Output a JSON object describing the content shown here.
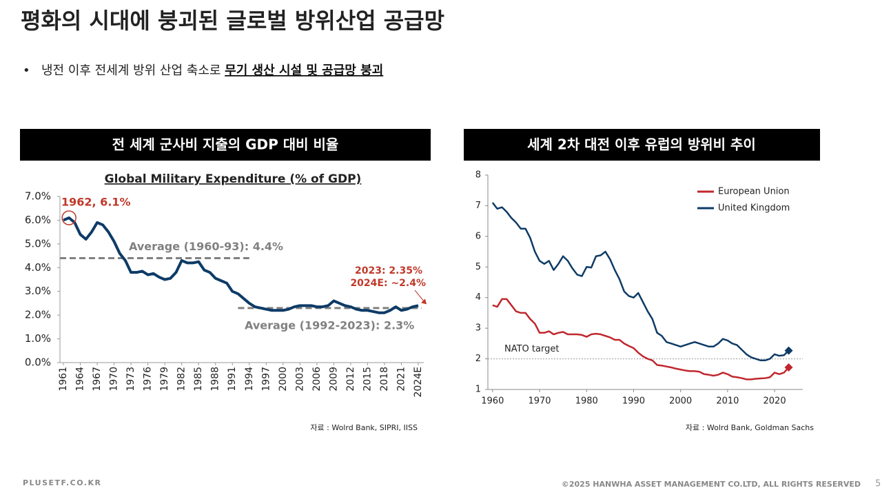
{
  "header": {
    "title": "평화의 시대에 붕괴된 글로벌 방위산업 공급망"
  },
  "bullet": {
    "text": "냉전 이후 전세계 방위 산업 축소로 ",
    "emphasis": "무기 생산 시설 및 공급망 붕괴"
  },
  "panels": [
    {
      "heading": "전 세계 군사비 지출의 GDP 대비 비율"
    },
    {
      "heading": "세계 2차 대전 이후 유럽의 방위비 추이"
    }
  ],
  "footer": {
    "site": "PLUSETF.CO.KR",
    "copyright": "©2025 HANWHA ASSET MANAGEMENT CO.LTD, ALL RIGHTS RESERVED",
    "page": "5"
  },
  "chart_data": [
    {
      "type": "line",
      "title": "Global Military Expenditure (% of GDP)",
      "color": "#0d3b66",
      "categories": [
        "1961",
        null,
        null,
        "1964",
        null,
        null,
        "1967",
        null,
        null,
        "1970",
        null,
        null,
        "1973",
        null,
        null,
        "1976",
        null,
        null,
        "1979",
        null,
        null,
        "1982",
        null,
        null,
        "1985",
        null,
        null,
        "1988",
        null,
        null,
        "1991",
        null,
        null,
        "1994",
        null,
        null,
        "1997",
        null,
        null,
        "2000",
        null,
        null,
        "2003",
        null,
        null,
        "2006",
        null,
        null,
        "2009",
        null,
        null,
        "2012",
        null,
        null,
        "2015",
        null,
        null,
        "2018",
        null,
        null,
        "2021",
        null,
        null,
        "2024E"
      ],
      "values": [
        6.0,
        6.1,
        5.9,
        5.4,
        5.2,
        5.5,
        5.9,
        5.8,
        5.5,
        5.1,
        4.6,
        4.3,
        3.8,
        3.8,
        3.85,
        3.7,
        3.75,
        3.6,
        3.5,
        3.55,
        3.8,
        4.3,
        4.2,
        4.2,
        4.25,
        3.9,
        3.8,
        3.55,
        3.45,
        3.35,
        3.0,
        2.9,
        2.7,
        2.5,
        2.35,
        2.3,
        2.25,
        2.2,
        2.2,
        2.2,
        2.25,
        2.35,
        2.4,
        2.4,
        2.4,
        2.35,
        2.35,
        2.4,
        2.6,
        2.5,
        2.4,
        2.35,
        2.25,
        2.2,
        2.2,
        2.15,
        2.1,
        2.1,
        2.2,
        2.35,
        2.2,
        2.25,
        2.35,
        2.4
      ],
      "ylim": [
        0,
        7
      ],
      "yticks": [
        {
          "value": 0,
          "label": "0.0%"
        },
        {
          "value": 1,
          "label": "1.0%"
        },
        {
          "value": 2,
          "label": "2.0%"
        },
        {
          "value": 3,
          "label": "3.0%"
        },
        {
          "value": 4,
          "label": "4.0%"
        },
        {
          "value": 5,
          "label": "5.0%"
        },
        {
          "value": 6,
          "label": "6.0%"
        },
        {
          "value": 7,
          "label": "7.0%"
        }
      ],
      "grid": false,
      "annotations": [
        {
          "text": "1962, 6.1%",
          "value": 6.1
        },
        {
          "text": "Average (1960-93): 4.4%",
          "value": 4.4
        },
        {
          "text": "Average (1992-2023): 2.3%",
          "value": 2.3
        },
        {
          "text": "2023: 2.35%"
        },
        {
          "text": "2024E: ~2.4%",
          "value": 2.4
        }
      ],
      "source": "자료 : Wolrd Bank, SIPRI, IISS"
    },
    {
      "type": "line",
      "legend": "top-right",
      "grid": false,
      "x": [
        1960,
        1961,
        1962,
        1963,
        1964,
        1965,
        1966,
        1967,
        1968,
        1969,
        1970,
        1971,
        1972,
        1973,
        1974,
        1975,
        1976,
        1977,
        1978,
        1979,
        1980,
        1981,
        1982,
        1983,
        1984,
        1985,
        1986,
        1987,
        1988,
        1989,
        1990,
        1991,
        1992,
        1993,
        1994,
        1995,
        1996,
        1997,
        1998,
        1999,
        2000,
        2001,
        2002,
        2003,
        2004,
        2005,
        2006,
        2007,
        2008,
        2009,
        2010,
        2011,
        2012,
        2013,
        2014,
        2015,
        2016,
        2017,
        2018,
        2019,
        2020,
        2021,
        2022,
        2023
      ],
      "series": [
        {
          "name": "European Union",
          "color": "#c0272d",
          "values": [
            3.75,
            3.7,
            3.95,
            3.95,
            3.75,
            3.55,
            3.5,
            3.5,
            3.3,
            3.15,
            2.85,
            2.85,
            2.9,
            2.8,
            2.85,
            2.88,
            2.8,
            2.8,
            2.8,
            2.78,
            2.72,
            2.8,
            2.82,
            2.8,
            2.75,
            2.7,
            2.62,
            2.62,
            2.5,
            2.42,
            2.35,
            2.2,
            2.08,
            2.0,
            1.95,
            1.8,
            1.78,
            1.75,
            1.72,
            1.68,
            1.65,
            1.62,
            1.6,
            1.6,
            1.58,
            1.5,
            1.48,
            1.45,
            1.48,
            1.55,
            1.5,
            1.42,
            1.4,
            1.37,
            1.33,
            1.33,
            1.35,
            1.36,
            1.37,
            1.4,
            1.55,
            1.5,
            1.55,
            1.72
          ]
        },
        {
          "name": "United Kingdom",
          "color": "#0d3b66",
          "values": [
            7.1,
            6.9,
            6.95,
            6.8,
            6.6,
            6.45,
            6.25,
            6.25,
            5.95,
            5.5,
            5.2,
            5.1,
            5.2,
            4.9,
            5.1,
            5.35,
            5.2,
            4.95,
            4.75,
            4.7,
            5.0,
            4.98,
            5.35,
            5.38,
            5.5,
            5.25,
            4.9,
            4.6,
            4.2,
            4.05,
            4.0,
            4.15,
            3.85,
            3.55,
            3.3,
            2.85,
            2.75,
            2.55,
            2.5,
            2.45,
            2.4,
            2.45,
            2.5,
            2.55,
            2.5,
            2.45,
            2.4,
            2.4,
            2.5,
            2.65,
            2.6,
            2.5,
            2.45,
            2.3,
            2.15,
            2.05,
            2.0,
            1.95,
            1.95,
            2.0,
            2.15,
            2.1,
            2.12,
            2.27
          ]
        }
      ],
      "last_marker": "diamond",
      "xlim": [
        1959,
        2026
      ],
      "xticks": [
        1960,
        1970,
        1980,
        1990,
        2000,
        2010,
        2020
      ],
      "ylim": [
        1,
        8
      ],
      "yticks": [
        1,
        2,
        3,
        4,
        5,
        6,
        7,
        8
      ],
      "annotations": [
        {
          "text": "NATO target",
          "value": 2
        }
      ],
      "source": "자료 : Wolrd Bank, Goldman Sachs"
    }
  ]
}
